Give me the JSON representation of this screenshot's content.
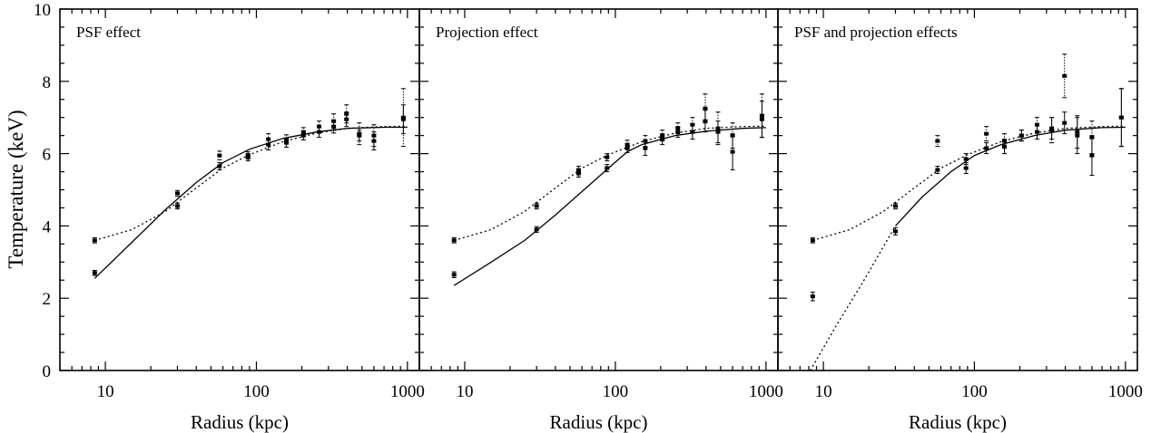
{
  "ylabel": "Temperature (keV)",
  "chart_data": [
    {
      "type": "scatter",
      "title": "PSF effect",
      "xlabel": "Radius  (kpc)",
      "xscale": "log",
      "xlim": [
        5,
        1200
      ],
      "ylim": [
        0,
        10
      ],
      "xticks": [
        10,
        100,
        1000
      ],
      "xtick_labels": [
        "10",
        "100",
        "1000"
      ],
      "yticks": [
        0,
        2,
        4,
        6,
        8,
        10
      ],
      "ytick_labels": [
        "0",
        "2",
        "4",
        "6",
        "8",
        "10"
      ],
      "series": [
        {
          "style": "solid",
          "kind": "points",
          "points": [
            {
              "x": 8.5,
              "y": 2.7,
              "err": 0.07
            },
            {
              "x": 30,
              "y": 4.55,
              "err": 0.08
            },
            {
              "x": 57,
              "y": 5.65,
              "err": 0.1
            },
            {
              "x": 88,
              "y": 5.9,
              "err": 0.1
            },
            {
              "x": 120,
              "y": 6.25,
              "err": 0.15
            },
            {
              "x": 158,
              "y": 6.3,
              "err": 0.12
            },
            {
              "x": 205,
              "y": 6.5,
              "err": 0.12
            },
            {
              "x": 260,
              "y": 6.6,
              "err": 0.15
            },
            {
              "x": 325,
              "y": 6.75,
              "err": 0.18
            },
            {
              "x": 395,
              "y": 6.95,
              "err": 0.2
            },
            {
              "x": 480,
              "y": 6.5,
              "err": 0.15
            },
            {
              "x": 600,
              "y": 6.35,
              "err": 0.25
            },
            {
              "x": 940,
              "y": 6.95,
              "err": 0.4
            }
          ]
        },
        {
          "style": "dotted",
          "kind": "points",
          "points": [
            {
              "x": 8.5,
              "y": 3.6,
              "err": 0.07
            },
            {
              "x": 30,
              "y": 4.9,
              "err": 0.08
            },
            {
              "x": 57,
              "y": 5.95,
              "err": 0.12
            },
            {
              "x": 88,
              "y": 5.95,
              "err": 0.1
            },
            {
              "x": 120,
              "y": 6.4,
              "err": 0.15
            },
            {
              "x": 158,
              "y": 6.4,
              "err": 0.12
            },
            {
              "x": 205,
              "y": 6.6,
              "err": 0.12
            },
            {
              "x": 260,
              "y": 6.75,
              "err": 0.15
            },
            {
              "x": 325,
              "y": 6.9,
              "err": 0.2
            },
            {
              "x": 395,
              "y": 7.1,
              "err": 0.25
            },
            {
              "x": 480,
              "y": 6.55,
              "err": 0.3
            },
            {
              "x": 600,
              "y": 6.5,
              "err": 0.3
            },
            {
              "x": 940,
              "y": 7.0,
              "err": 0.8
            }
          ]
        },
        {
          "style": "solid",
          "kind": "model",
          "points": [
            {
              "x": 8.5,
              "y": 2.55
            },
            {
              "x": 15,
              "y": 3.55
            },
            {
              "x": 25,
              "y": 4.45
            },
            {
              "x": 40,
              "y": 5.2
            },
            {
              "x": 60,
              "y": 5.75
            },
            {
              "x": 90,
              "y": 6.12
            },
            {
              "x": 150,
              "y": 6.42
            },
            {
              "x": 250,
              "y": 6.6
            },
            {
              "x": 400,
              "y": 6.7
            },
            {
              "x": 700,
              "y": 6.73
            },
            {
              "x": 1000,
              "y": 6.73
            }
          ]
        },
        {
          "style": "dotted",
          "kind": "model",
          "points": [
            {
              "x": 8.5,
              "y": 3.6
            },
            {
              "x": 15,
              "y": 3.9
            },
            {
              "x": 25,
              "y": 4.4
            },
            {
              "x": 40,
              "y": 5.05
            },
            {
              "x": 60,
              "y": 5.6
            },
            {
              "x": 90,
              "y": 5.97
            },
            {
              "x": 150,
              "y": 6.33
            },
            {
              "x": 250,
              "y": 6.57
            },
            {
              "x": 400,
              "y": 6.7
            },
            {
              "x": 700,
              "y": 6.75
            },
            {
              "x": 1000,
              "y": 6.76
            }
          ]
        }
      ]
    },
    {
      "type": "scatter",
      "title": "Projection effect",
      "xlabel": "Radius  (kpc)",
      "xscale": "log",
      "xlim": [
        5,
        1200
      ],
      "ylim": [
        0,
        10
      ],
      "xticks": [
        10,
        100,
        1000
      ],
      "xtick_labels": [
        "10",
        "100",
        "1000"
      ],
      "yticks": [
        0,
        2,
        4,
        6,
        8,
        10
      ],
      "series": [
        {
          "style": "solid",
          "kind": "points",
          "points": [
            {
              "x": 8.5,
              "y": 2.65,
              "err": 0.08
            },
            {
              "x": 30,
              "y": 3.9,
              "err": 0.08
            },
            {
              "x": 57,
              "y": 5.45,
              "err": 0.1
            },
            {
              "x": 88,
              "y": 5.6,
              "err": 0.1
            },
            {
              "x": 120,
              "y": 6.15,
              "err": 0.12
            },
            {
              "x": 158,
              "y": 6.15,
              "err": 0.2
            },
            {
              "x": 205,
              "y": 6.4,
              "err": 0.15
            },
            {
              "x": 260,
              "y": 6.6,
              "err": 0.15
            },
            {
              "x": 325,
              "y": 6.6,
              "err": 0.2
            },
            {
              "x": 395,
              "y": 6.9,
              "err": 0.3
            },
            {
              "x": 480,
              "y": 6.6,
              "err": 0.3
            },
            {
              "x": 600,
              "y": 6.05,
              "err": 0.5
            },
            {
              "x": 940,
              "y": 6.95,
              "err": 0.5
            }
          ]
        },
        {
          "style": "dotted",
          "kind": "points",
          "points": [
            {
              "x": 8.5,
              "y": 3.6,
              "err": 0.07
            },
            {
              "x": 30,
              "y": 4.55,
              "err": 0.08
            },
            {
              "x": 57,
              "y": 5.55,
              "err": 0.1
            },
            {
              "x": 88,
              "y": 5.9,
              "err": 0.1
            },
            {
              "x": 120,
              "y": 6.25,
              "err": 0.12
            },
            {
              "x": 158,
              "y": 6.35,
              "err": 0.15
            },
            {
              "x": 205,
              "y": 6.5,
              "err": 0.15
            },
            {
              "x": 260,
              "y": 6.7,
              "err": 0.15
            },
            {
              "x": 325,
              "y": 6.8,
              "err": 0.2
            },
            {
              "x": 395,
              "y": 7.25,
              "err": 0.4
            },
            {
              "x": 480,
              "y": 6.7,
              "err": 0.45
            },
            {
              "x": 600,
              "y": 6.5,
              "err": 0.35
            },
            {
              "x": 940,
              "y": 7.05,
              "err": 0.6
            }
          ]
        },
        {
          "style": "solid",
          "kind": "model",
          "points": [
            {
              "x": 8.5,
              "y": 2.35
            },
            {
              "x": 15,
              "y": 3.0
            },
            {
              "x": 25,
              "y": 3.6
            },
            {
              "x": 40,
              "y": 4.3
            },
            {
              "x": 60,
              "y": 4.95
            },
            {
              "x": 90,
              "y": 5.6
            },
            {
              "x": 120,
              "y": 6.05
            },
            {
              "x": 150,
              "y": 6.25
            },
            {
              "x": 250,
              "y": 6.5
            },
            {
              "x": 400,
              "y": 6.62
            },
            {
              "x": 700,
              "y": 6.7
            },
            {
              "x": 1000,
              "y": 6.72
            }
          ]
        },
        {
          "style": "dotted",
          "kind": "model",
          "points": [
            {
              "x": 8.5,
              "y": 3.6
            },
            {
              "x": 15,
              "y": 3.9
            },
            {
              "x": 25,
              "y": 4.4
            },
            {
              "x": 40,
              "y": 5.05
            },
            {
              "x": 60,
              "y": 5.6
            },
            {
              "x": 90,
              "y": 5.97
            },
            {
              "x": 150,
              "y": 6.33
            },
            {
              "x": 250,
              "y": 6.57
            },
            {
              "x": 400,
              "y": 6.7
            },
            {
              "x": 700,
              "y": 6.75
            },
            {
              "x": 1000,
              "y": 6.76
            }
          ]
        }
      ]
    },
    {
      "type": "scatter",
      "title": "PSF and projection effects",
      "xlabel": "Radius  (kpc)",
      "xscale": "log",
      "xlim": [
        5,
        1200
      ],
      "ylim": [
        0,
        10
      ],
      "xticks": [
        10,
        100,
        1000
      ],
      "xtick_labels": [
        "10",
        "100",
        "1000"
      ],
      "yticks": [
        0,
        2,
        4,
        6,
        8,
        10
      ],
      "series": [
        {
          "style": "solid",
          "kind": "points",
          "points": [
            {
              "x": 8.5,
              "y": 2.05,
              "err": 0.12
            },
            {
              "x": 30,
              "y": 3.85,
              "err": 0.1
            },
            {
              "x": 57,
              "y": 5.55,
              "err": 0.1
            },
            {
              "x": 88,
              "y": 5.6,
              "err": 0.15
            },
            {
              "x": 120,
              "y": 6.15,
              "err": 0.15
            },
            {
              "x": 158,
              "y": 6.2,
              "err": 0.2
            },
            {
              "x": 205,
              "y": 6.5,
              "err": 0.15
            },
            {
              "x": 260,
              "y": 6.6,
              "err": 0.2
            },
            {
              "x": 325,
              "y": 6.7,
              "err": 0.3
            },
            {
              "x": 395,
              "y": 6.85,
              "err": 0.3
            },
            {
              "x": 480,
              "y": 6.5,
              "err": 0.5
            },
            {
              "x": 600,
              "y": 5.95,
              "err": 0.55
            },
            {
              "x": 940,
              "y": 7.0,
              "err": 0.8
            }
          ]
        },
        {
          "style": "dotted",
          "kind": "points",
          "points": [
            {
              "x": 8.5,
              "y": 3.6,
              "err": 0.07
            },
            {
              "x": 30,
              "y": 4.55,
              "err": 0.08
            },
            {
              "x": 57,
              "y": 6.35,
              "err": 0.15
            },
            {
              "x": 88,
              "y": 5.85,
              "err": 0.15
            },
            {
              "x": 120,
              "y": 6.55,
              "err": 0.2
            },
            {
              "x": 158,
              "y": 6.35,
              "err": 0.2
            },
            {
              "x": 205,
              "y": 6.5,
              "err": 0.15
            },
            {
              "x": 260,
              "y": 6.8,
              "err": 0.2
            },
            {
              "x": 325,
              "y": 6.65,
              "err": 0.35
            },
            {
              "x": 395,
              "y": 8.15,
              "err": 0.6
            },
            {
              "x": 480,
              "y": 6.6,
              "err": 0.45
            },
            {
              "x": 600,
              "y": 6.45,
              "err": 0.45
            },
            {
              "x": 940,
              "y": 7.0,
              "err": 0.8
            }
          ]
        },
        {
          "style": "solid",
          "kind": "model",
          "points": [
            {
              "x": 30,
              "y": 4.0
            },
            {
              "x": 45,
              "y": 4.8
            },
            {
              "x": 70,
              "y": 5.5
            },
            {
              "x": 100,
              "y": 5.95
            },
            {
              "x": 150,
              "y": 6.25
            },
            {
              "x": 250,
              "y": 6.5
            },
            {
              "x": 400,
              "y": 6.65
            },
            {
              "x": 700,
              "y": 6.72
            },
            {
              "x": 1000,
              "y": 6.73
            }
          ]
        },
        {
          "style": "dotted",
          "kind": "model",
          "points": [
            {
              "x": 8.5,
              "y": 3.6
            },
            {
              "x": 15,
              "y": 3.9
            },
            {
              "x": 25,
              "y": 4.4
            },
            {
              "x": 40,
              "y": 5.05
            },
            {
              "x": 60,
              "y": 5.6
            },
            {
              "x": 90,
              "y": 5.97
            },
            {
              "x": 150,
              "y": 6.33
            },
            {
              "x": 250,
              "y": 6.57
            },
            {
              "x": 400,
              "y": 6.7
            },
            {
              "x": 700,
              "y": 6.75
            },
            {
              "x": 1000,
              "y": 6.76
            }
          ]
        },
        {
          "style": "dotted",
          "kind": "model",
          "points": [
            {
              "x": 8.2,
              "y": 0.0
            },
            {
              "x": 12,
              "y": 1.2
            },
            {
              "x": 18,
              "y": 2.4
            },
            {
              "x": 24,
              "y": 3.3
            },
            {
              "x": 30,
              "y": 4.0
            }
          ]
        }
      ]
    }
  ]
}
